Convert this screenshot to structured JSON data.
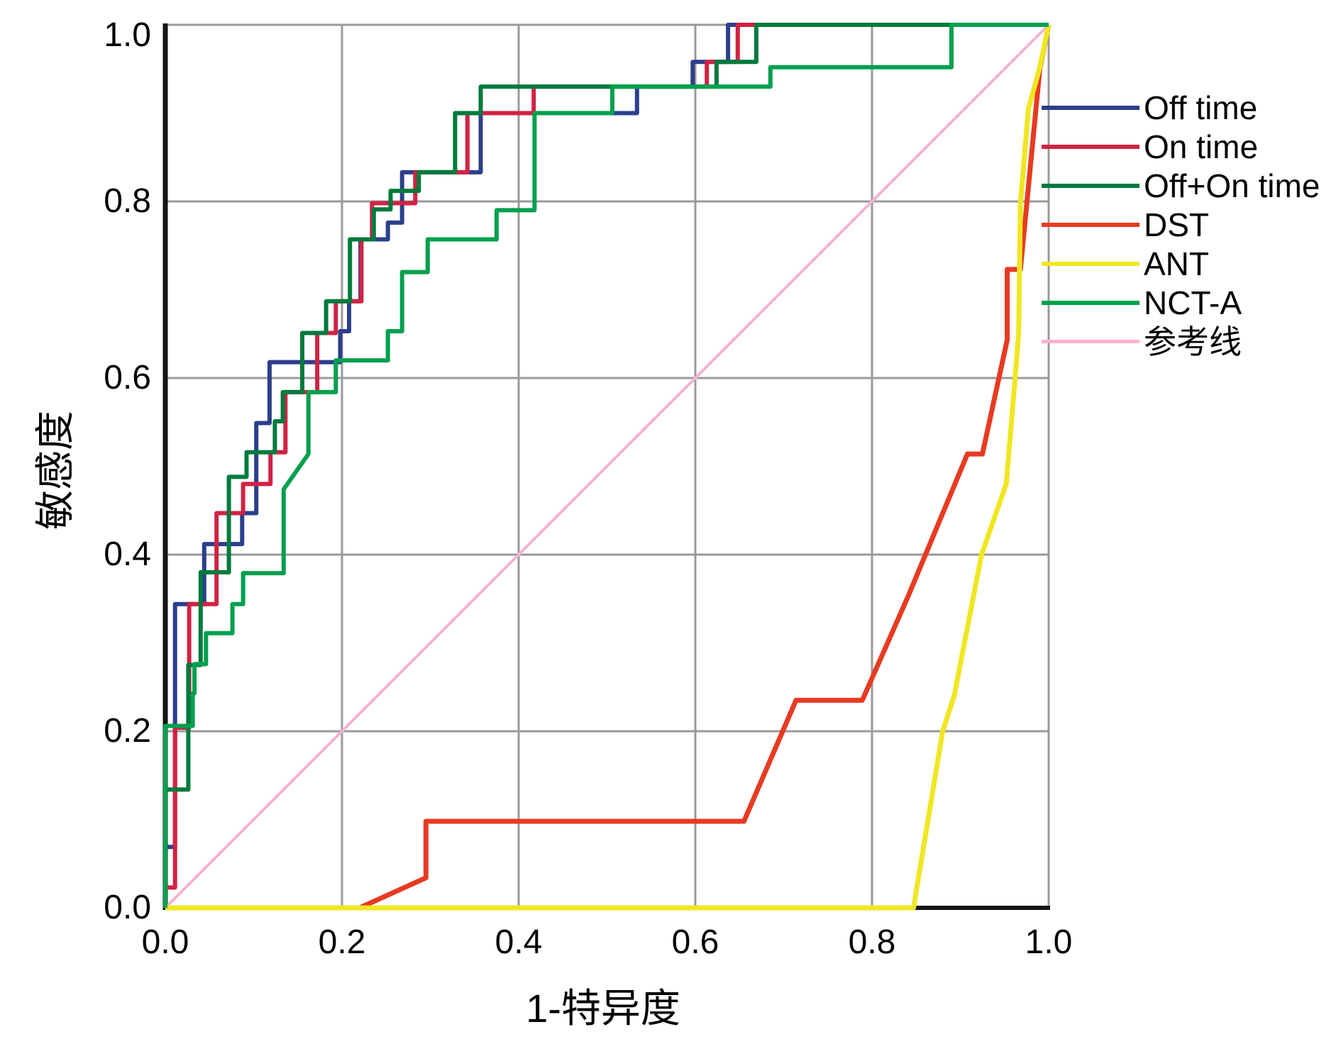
{
  "chart_data": {
    "type": "line",
    "subtype": "roc-curves",
    "title": "",
    "xlabel": "1-特异度",
    "ylabel": "敏感度",
    "xlim": [
      0,
      1
    ],
    "ylim": [
      0,
      1
    ],
    "grid": true,
    "legend_position": "right",
    "x_ticks": [
      0.0,
      0.2,
      0.4,
      0.6,
      0.8,
      1.0
    ],
    "x_tick_labels": [
      "0.0",
      "0.2",
      "0.4",
      "0.6",
      "0.8",
      "1.0"
    ],
    "y_ticks": [
      0.0,
      0.2,
      0.4,
      0.6,
      0.8,
      1.0
    ],
    "y_tick_labels": [
      "0.0",
      "0.2",
      "0.4",
      "0.6",
      "0.8",
      "1.0"
    ],
    "colors": {
      "grid": "#9a9a9a",
      "axis": "#141414",
      "background": "#ffffff"
    },
    "series": [
      {
        "name": "参考线",
        "color": "#f8b2d1",
        "width": 4,
        "reference": true,
        "points": [
          [
            0,
            0
          ],
          [
            1,
            1
          ]
        ]
      },
      {
        "name": "Off time",
        "color": "#2c3f8c",
        "width": 6,
        "points": [
          [
            0,
            0
          ],
          [
            0,
            0.069
          ],
          [
            0.011,
            0.069
          ],
          [
            0.011,
            0.344
          ],
          [
            0.044,
            0.344
          ],
          [
            0.044,
            0.412
          ],
          [
            0.087,
            0.412
          ],
          [
            0.087,
            0.447
          ],
          [
            0.103,
            0.447
          ],
          [
            0.103,
            0.549
          ],
          [
            0.118,
            0.549
          ],
          [
            0.118,
            0.618
          ],
          [
            0.198,
            0.618
          ],
          [
            0.198,
            0.653
          ],
          [
            0.208,
            0.653
          ],
          [
            0.208,
            0.687
          ],
          [
            0.221,
            0.687
          ],
          [
            0.221,
            0.757
          ],
          [
            0.252,
            0.757
          ],
          [
            0.252,
            0.776
          ],
          [
            0.268,
            0.776
          ],
          [
            0.268,
            0.833
          ],
          [
            0.357,
            0.833
          ],
          [
            0.357,
            0.9
          ],
          [
            0.534,
            0.9
          ],
          [
            0.534,
            0.93
          ],
          [
            0.597,
            0.93
          ],
          [
            0.597,
            0.958
          ],
          [
            0.637,
            0.958
          ],
          [
            0.637,
            1
          ],
          [
            1,
            1
          ]
        ]
      },
      {
        "name": "On time",
        "color": "#d02244",
        "width": 6,
        "points": [
          [
            0,
            0
          ],
          [
            0,
            0.023
          ],
          [
            0.011,
            0.023
          ],
          [
            0.011,
            0.204
          ],
          [
            0.027,
            0.204
          ],
          [
            0.027,
            0.344
          ],
          [
            0.058,
            0.344
          ],
          [
            0.058,
            0.447
          ],
          [
            0.088,
            0.447
          ],
          [
            0.088,
            0.48
          ],
          [
            0.119,
            0.48
          ],
          [
            0.119,
            0.516
          ],
          [
            0.136,
            0.516
          ],
          [
            0.136,
            0.584
          ],
          [
            0.172,
            0.584
          ],
          [
            0.172,
            0.651
          ],
          [
            0.193,
            0.651
          ],
          [
            0.193,
            0.687
          ],
          [
            0.222,
            0.687
          ],
          [
            0.222,
            0.757
          ],
          [
            0.234,
            0.757
          ],
          [
            0.234,
            0.798
          ],
          [
            0.283,
            0.798
          ],
          [
            0.283,
            0.833
          ],
          [
            0.342,
            0.833
          ],
          [
            0.342,
            0.9
          ],
          [
            0.417,
            0.9
          ],
          [
            0.417,
            0.93
          ],
          [
            0.613,
            0.93
          ],
          [
            0.613,
            0.958
          ],
          [
            0.648,
            0.958
          ],
          [
            0.648,
            1
          ],
          [
            1,
            1
          ]
        ]
      },
      {
        "name": "Off+On time",
        "color": "#007a3d",
        "width": 6,
        "points": [
          [
            0,
            0
          ],
          [
            0,
            0.134
          ],
          [
            0.026,
            0.134
          ],
          [
            0.026,
            0.275
          ],
          [
            0.04,
            0.275
          ],
          [
            0.04,
            0.38
          ],
          [
            0.072,
            0.38
          ],
          [
            0.072,
            0.488
          ],
          [
            0.092,
            0.488
          ],
          [
            0.092,
            0.516
          ],
          [
            0.124,
            0.516
          ],
          [
            0.124,
            0.551
          ],
          [
            0.133,
            0.551
          ],
          [
            0.133,
            0.584
          ],
          [
            0.155,
            0.584
          ],
          [
            0.155,
            0.651
          ],
          [
            0.182,
            0.651
          ],
          [
            0.182,
            0.687
          ],
          [
            0.209,
            0.687
          ],
          [
            0.209,
            0.757
          ],
          [
            0.236,
            0.757
          ],
          [
            0.236,
            0.791
          ],
          [
            0.255,
            0.791
          ],
          [
            0.255,
            0.812
          ],
          [
            0.287,
            0.812
          ],
          [
            0.287,
            0.833
          ],
          [
            0.328,
            0.833
          ],
          [
            0.328,
            0.9
          ],
          [
            0.357,
            0.9
          ],
          [
            0.357,
            0.93
          ],
          [
            0.624,
            0.93
          ],
          [
            0.624,
            0.958
          ],
          [
            0.669,
            0.958
          ],
          [
            0.669,
            1
          ],
          [
            1,
            1
          ]
        ]
      },
      {
        "name": "DST",
        "color": "#e73b22",
        "width": 7,
        "points": [
          [
            0,
            0
          ],
          [
            0.22,
            0
          ],
          [
            0.295,
            0.034
          ],
          [
            0.295,
            0.098
          ],
          [
            0.655,
            0.098
          ],
          [
            0.714,
            0.235
          ],
          [
            0.789,
            0.235
          ],
          [
            0.841,
            0.353
          ],
          [
            0.908,
            0.514
          ],
          [
            0.925,
            0.514
          ],
          [
            0.953,
            0.643
          ],
          [
            0.953,
            0.723
          ],
          [
            0.968,
            0.723
          ],
          [
            0.99,
            0.95
          ],
          [
            1,
            1
          ]
        ]
      },
      {
        "name": "ANT",
        "color": "#f0e622",
        "width": 7,
        "points": [
          [
            0,
            0
          ],
          [
            0.847,
            0
          ],
          [
            0.88,
            0.2
          ],
          [
            0.893,
            0.24
          ],
          [
            0.924,
            0.4
          ],
          [
            0.952,
            0.48
          ],
          [
            0.962,
            0.6
          ],
          [
            0.966,
            0.651
          ],
          [
            0.968,
            0.798
          ],
          [
            0.977,
            0.905
          ],
          [
            0.99,
            0.952
          ],
          [
            1,
            1
          ]
        ]
      },
      {
        "name": "NCT-A",
        "color": "#00a04e",
        "width": 6,
        "points": [
          [
            0,
            0
          ],
          [
            0,
            0.206
          ],
          [
            0.031,
            0.206
          ],
          [
            0.031,
            0.243
          ],
          [
            0.033,
            0.243
          ],
          [
            0.033,
            0.276
          ],
          [
            0.046,
            0.276
          ],
          [
            0.046,
            0.311
          ],
          [
            0.076,
            0.311
          ],
          [
            0.076,
            0.344
          ],
          [
            0.088,
            0.344
          ],
          [
            0.088,
            0.379
          ],
          [
            0.134,
            0.379
          ],
          [
            0.134,
            0.474
          ],
          [
            0.162,
            0.514
          ],
          [
            0.162,
            0.584
          ],
          [
            0.193,
            0.584
          ],
          [
            0.193,
            0.62
          ],
          [
            0.252,
            0.62
          ],
          [
            0.252,
            0.653
          ],
          [
            0.268,
            0.653
          ],
          [
            0.268,
            0.72
          ],
          [
            0.297,
            0.72
          ],
          [
            0.297,
            0.757
          ],
          [
            0.375,
            0.757
          ],
          [
            0.375,
            0.79
          ],
          [
            0.418,
            0.79
          ],
          [
            0.418,
            0.9
          ],
          [
            0.506,
            0.9
          ],
          [
            0.506,
            0.93
          ],
          [
            0.685,
            0.93
          ],
          [
            0.685,
            0.952
          ],
          [
            0.89,
            0.952
          ],
          [
            0.89,
            1
          ],
          [
            1,
            1
          ]
        ]
      }
    ],
    "legend_order": [
      "Off time",
      "On time",
      "Off+On time",
      "DST",
      "ANT",
      "NCT-A",
      "参考线"
    ]
  }
}
